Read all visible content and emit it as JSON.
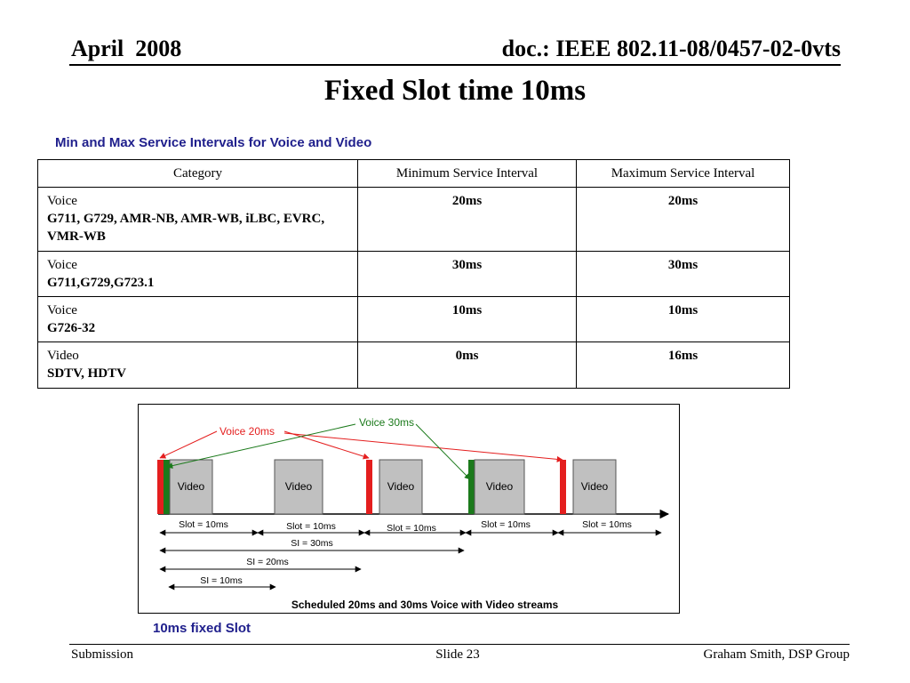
{
  "header": {
    "left": "April  2008",
    "right": "doc.: IEEE 802.11-08/0457-02-0vts"
  },
  "title": "Fixed Slot time 10ms",
  "table": {
    "caption": "Min and Max Service Intervals for Voice and Video",
    "columns": [
      "Category",
      "Minimum Service Interval",
      "Maximum Service Interval"
    ],
    "rows": [
      {
        "category": "Voice",
        "detail": "G711, G729, AMR-NB, AMR-WB, iLBC, EVRC, VMR-WB",
        "min": "20ms",
        "max": "20ms"
      },
      {
        "category": "Voice",
        "detail": "G711,G729,G723.1",
        "min": "30ms",
        "max": "30ms"
      },
      {
        "category": "Voice",
        "detail": "G726-32",
        "min": "10ms",
        "max": "10ms"
      },
      {
        "category": "Video",
        "detail": "SDTV, HDTV",
        "min": "0ms",
        "max": "16ms"
      }
    ]
  },
  "diagram": {
    "voice20_label": "Voice 20ms",
    "voice30_label": "Voice 30ms",
    "video_label": "Video",
    "slot_labels": [
      "Slot = 10ms",
      "Slot = 10ms",
      "Slot = 10ms",
      "Slot = 10ms",
      "Slot = 10ms"
    ],
    "si30_label": "SI = 30ms",
    "si20_label": "SI = 20ms",
    "si10_label": "SI = 10ms",
    "caption": "Scheduled 20ms and 30ms Voice with Video streams",
    "colors": {
      "voice20": "#e41e1e",
      "voice30": "#1b7a1b",
      "video": "#c0c0c0",
      "video_border": "#555555"
    }
  },
  "footnote": "10ms fixed Slot",
  "footer": {
    "left": "Submission",
    "center": "Slide 23",
    "right": "Graham Smith, DSP Group"
  }
}
